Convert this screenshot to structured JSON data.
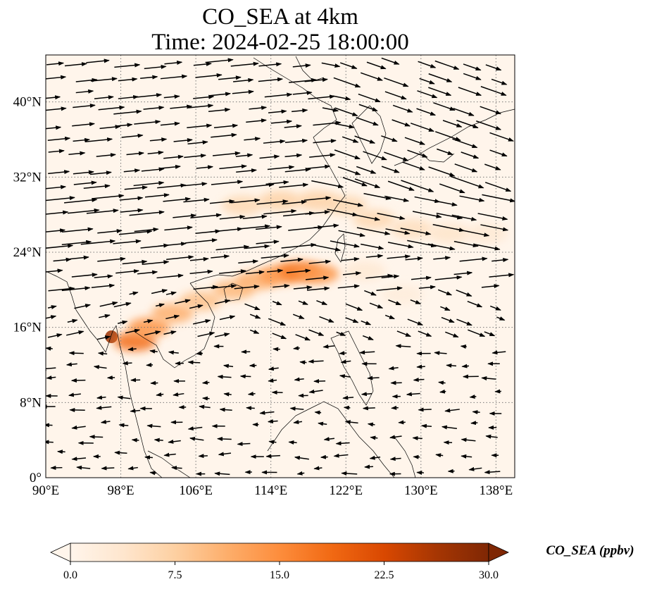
{
  "title": {
    "line1": "CO_SEA at 4km",
    "line2": "Time: 2024-02-25 18:00:00"
  },
  "map": {
    "extent": {
      "lon_min": 90,
      "lon_max": 140,
      "lat_min": 0,
      "lat_max": 45
    },
    "projection": "PlateCarree",
    "gridlines": "dotted",
    "lon_ticks": [
      {
        "value": 90,
        "label": "90°E"
      },
      {
        "value": 98,
        "label": "98°E"
      },
      {
        "value": 106,
        "label": "106°E"
      },
      {
        "value": 114,
        "label": "114°E"
      },
      {
        "value": 122,
        "label": "122°E"
      },
      {
        "value": 130,
        "label": "130°E"
      },
      {
        "value": 138,
        "label": "138°E"
      }
    ],
    "lat_ticks": [
      {
        "value": 0,
        "label": "0°"
      },
      {
        "value": 8,
        "label": "8°N"
      },
      {
        "value": 16,
        "label": "16°N"
      },
      {
        "value": 24,
        "label": "24°N"
      },
      {
        "value": 32,
        "label": "32°N"
      },
      {
        "value": 40,
        "label": "40°N"
      }
    ]
  },
  "co_plumes": [
    {
      "lon": 97.0,
      "lat": 15.0,
      "value": 27
    },
    {
      "lon": 99.5,
      "lat": 14.5,
      "value": 18
    },
    {
      "lon": 101.0,
      "lat": 16.0,
      "value": 14
    },
    {
      "lon": 103.5,
      "lat": 17.5,
      "value": 11
    },
    {
      "lon": 106.5,
      "lat": 18.8,
      "value": 9
    },
    {
      "lon": 110.0,
      "lat": 20.0,
      "value": 10
    },
    {
      "lon": 112.5,
      "lat": 21.0,
      "value": 11
    },
    {
      "lon": 115.0,
      "lat": 21.6,
      "value": 14
    },
    {
      "lon": 117.0,
      "lat": 22.0,
      "value": 17
    },
    {
      "lon": 119.0,
      "lat": 21.7,
      "value": 14
    },
    {
      "lon": 111.0,
      "lat": 29.0,
      "value": 6
    },
    {
      "lon": 115.0,
      "lat": 29.5,
      "value": 7
    },
    {
      "lon": 119.0,
      "lat": 29.5,
      "value": 7
    },
    {
      "lon": 122.0,
      "lat": 29.0,
      "value": 6
    },
    {
      "lon": 125.0,
      "lat": 27.5,
      "value": 6
    },
    {
      "lon": 129.0,
      "lat": 26.5,
      "value": 5
    },
    {
      "lon": 133.0,
      "lat": 26.0,
      "value": 4
    },
    {
      "lon": 137.0,
      "lat": 26.0,
      "value": 3
    },
    {
      "lon": 124.0,
      "lat": 22.0,
      "value": 3
    },
    {
      "lon": 128.0,
      "lat": 19.5,
      "value": 2
    }
  ],
  "colorbar": {
    "label": "CO_SEA (ppbv)",
    "min": 0,
    "max": 30,
    "extend": "both",
    "cmap_stops": [
      "#fff5eb",
      "#fee6ce",
      "#fdd0a2",
      "#fdae6b",
      "#fd8d3c",
      "#f16913",
      "#d94801",
      "#a63603",
      "#7f2704"
    ],
    "ticks": [
      {
        "value": 0,
        "label": "0.0"
      },
      {
        "value": 7.5,
        "label": "7.5"
      },
      {
        "value": 15,
        "label": "15.0"
      },
      {
        "value": 22.5,
        "label": "22.5"
      },
      {
        "value": 30,
        "label": "30.0"
      }
    ]
  }
}
